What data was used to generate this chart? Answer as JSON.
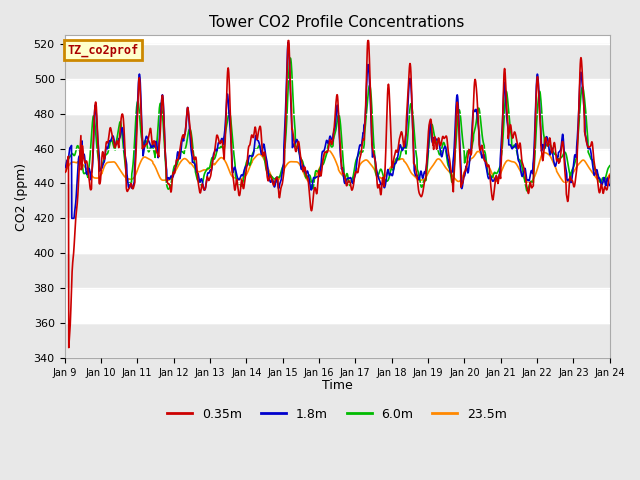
{
  "title": "Tower CO2 Profile Concentrations",
  "xlabel": "Time",
  "ylabel": "CO2 (ppm)",
  "ylim": [
    340,
    525
  ],
  "yticks": [
    340,
    360,
    380,
    400,
    420,
    440,
    460,
    480,
    500,
    520
  ],
  "xtick_labels": [
    "Jan 9",
    "Jan 10",
    "Jan 11",
    "Jan 12",
    "Jan 13",
    "Jan 14",
    "Jan 15",
    "Jan 16",
    "Jan 17",
    "Jan 18",
    "Jan 19",
    "Jan 20",
    "Jan 21",
    "Jan 22",
    "Jan 23",
    "Jan 24"
  ],
  "series": {
    "0.35m": {
      "color": "#cc0000",
      "lw": 1.2
    },
    "1.8m": {
      "color": "#0000cc",
      "lw": 1.2
    },
    "6.0m": {
      "color": "#00bb00",
      "lw": 1.2
    },
    "23.5m": {
      "color": "#ff8800",
      "lw": 1.2
    }
  },
  "legend_box_label": "TZ_co2prof",
  "legend_box_facecolor": "#ffffcc",
  "legend_box_edgecolor": "#cc8800",
  "fig_facecolor": "#e8e8e8",
  "plot_facecolor": "#ffffff",
  "band_colors": [
    "#e8e8e8",
    "#ffffff"
  ],
  "n_days": 15,
  "n_points": 1800,
  "seed": 7
}
